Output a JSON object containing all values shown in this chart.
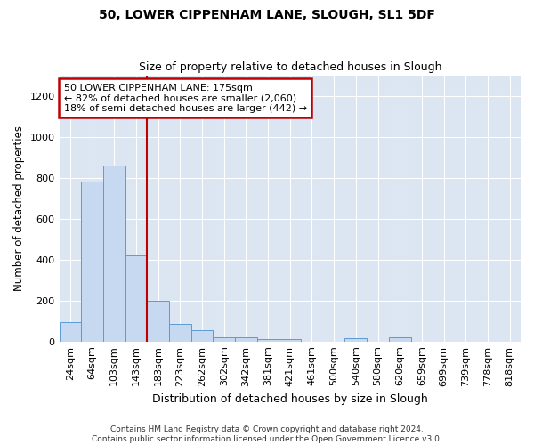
{
  "title1": "50, LOWER CIPPENHAM LANE, SLOUGH, SL1 5DF",
  "title2": "Size of property relative to detached houses in Slough",
  "xlabel": "Distribution of detached houses by size in Slough",
  "ylabel": "Number of detached properties",
  "categories": [
    "24sqm",
    "64sqm",
    "103sqm",
    "143sqm",
    "183sqm",
    "223sqm",
    "262sqm",
    "302sqm",
    "342sqm",
    "381sqm",
    "421sqm",
    "461sqm",
    "500sqm",
    "540sqm",
    "580sqm",
    "620sqm",
    "659sqm",
    "699sqm",
    "739sqm",
    "778sqm",
    "818sqm"
  ],
  "values": [
    95,
    783,
    860,
    420,
    200,
    85,
    55,
    22,
    22,
    10,
    10,
    0,
    0,
    15,
    0,
    22,
    0,
    0,
    0,
    0,
    0
  ],
  "bar_color": "#c6d9f0",
  "bar_edge_color": "#5b9bd5",
  "bg_color": "#dce6f3",
  "annotation_text": "50 LOWER CIPPENHAM LANE: 175sqm\n← 82% of detached houses are smaller (2,060)\n18% of semi-detached houses are larger (442) →",
  "annotation_box_color": "#ffffff",
  "annotation_box_edge": "#c00000",
  "vline_color": "#c00000",
  "vline_x_idx": 4,
  "footer": "Contains HM Land Registry data © Crown copyright and database right 2024.\nContains public sector information licensed under the Open Government Licence v3.0.",
  "ylim": [
    0,
    1300
  ],
  "yticks": [
    0,
    200,
    400,
    600,
    800,
    1000,
    1200
  ]
}
